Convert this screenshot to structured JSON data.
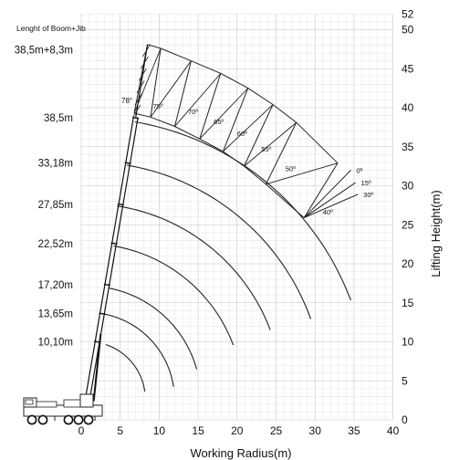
{
  "chart_data": {
    "type": "load-chart",
    "title": "Lenght of Boom+Jib",
    "xlabel": "Working Radius(m)",
    "ylabel": "Lifting Height(m)",
    "xlim": [
      0,
      40
    ],
    "ylim": [
      0,
      52
    ],
    "x_ticks": [
      0,
      5,
      10,
      15,
      20,
      25,
      30,
      35,
      40
    ],
    "y_ticks": [
      0,
      5,
      10,
      15,
      20,
      25,
      30,
      35,
      40,
      45,
      50,
      52
    ],
    "grid": true,
    "boom_lengths": [
      {
        "label": "10,10m",
        "height": 10.0
      },
      {
        "label": "13,65m",
        "height": 13.6
      },
      {
        "label": "17,20m",
        "height": 17.3
      },
      {
        "label": "22,52m",
        "height": 22.6
      },
      {
        "label": "27,85m",
        "height": 27.6
      },
      {
        "label": "33,18m",
        "height": 32.9
      },
      {
        "label": "38,5m",
        "height": 38.7
      },
      {
        "label": "38,5m+8,3m",
        "height": 47.4
      }
    ],
    "boom_angle_label": "78°",
    "jib_offset_labels": [
      "0º",
      "15º",
      "30º"
    ],
    "boom_angle_marks": [
      {
        "label": "75º",
        "x": 9.2,
        "y": 39.9
      },
      {
        "label": "70º",
        "x": 13.7,
        "y": 39.2
      },
      {
        "label": "65º",
        "x": 17.0,
        "y": 37.9
      },
      {
        "label": "60º",
        "x": 20.0,
        "y": 36.4
      },
      {
        "label": "55º",
        "x": 23.1,
        "y": 34.4
      },
      {
        "label": "50º",
        "x": 26.2,
        "y": 31.9
      },
      {
        "label": "40º",
        "x": 31.0,
        "y": 26.3
      }
    ],
    "arcs": [
      {
        "label": "10,10m",
        "start": [
          3.2,
          9.8
        ],
        "end": [
          8.0,
          3.6
        ]
      },
      {
        "label": "13,65m",
        "start": [
          3.0,
          13.8
        ],
        "end": [
          11.6,
          4.2
        ]
      },
      {
        "label": "17,20m",
        "start": [
          3.7,
          17.5
        ],
        "end": [
          14.2,
          6.3
        ]
      },
      {
        "label": "22,52m",
        "start": [
          4.2,
          22.5
        ],
        "end": [
          19.3,
          9.5
        ]
      },
      {
        "label": "27,85m",
        "start": [
          4.7,
          28.0
        ],
        "end": [
          23.7,
          11.3
        ]
      },
      {
        "label": "33,18m",
        "start": [
          5.9,
          33.0
        ],
        "end": [
          29.1,
          12.8
        ]
      },
      {
        "label": "38,5m",
        "start": [
          7.0,
          38.8
        ],
        "end": [
          34.0,
          15.1
        ]
      }
    ],
    "jib_tips": [
      {
        "angle": "78°",
        "x": 8.5,
        "y": 48.1
      },
      {
        "angle": "75º",
        "x": 10.2,
        "y": 47.6
      },
      {
        "angle": "70º",
        "x": 14.1,
        "y": 46.0
      },
      {
        "angle": "65º",
        "x": 17.9,
        "y": 44.4
      },
      {
        "angle": "60º",
        "x": 21.4,
        "y": 42.5
      },
      {
        "angle": "55º",
        "x": 24.6,
        "y": 40.4
      },
      {
        "angle": "50º",
        "x": 27.6,
        "y": 38.1
      },
      {
        "angle": "40º",
        "x": 32.9,
        "y": 32.9
      }
    ],
    "boom_heads": [
      {
        "angle": "78°",
        "x": 6.8,
        "y": 39.3
      },
      {
        "angle": "75º",
        "x": 8.9,
        "y": 38.8
      },
      {
        "angle": "70º",
        "x": 12.0,
        "y": 37.6
      },
      {
        "angle": "65º",
        "x": 15.2,
        "y": 36.0
      },
      {
        "angle": "60º",
        "x": 18.2,
        "y": 34.4
      },
      {
        "angle": "55º",
        "x": 20.9,
        "y": 32.5
      },
      {
        "angle": "50º",
        "x": 23.7,
        "y": 30.2
      },
      {
        "angle": "40º",
        "x": 28.6,
        "y": 25.9
      }
    ],
    "jib_offset_tips": [
      {
        "label": "0º",
        "x": 34.6,
        "y": 32.0
      },
      {
        "label": "15º",
        "x": 35.2,
        "y": 30.4
      },
      {
        "label": "30º",
        "x": 35.5,
        "y": 28.9
      }
    ]
  },
  "icons": {
    "crane": "mobile-crane-icon"
  }
}
